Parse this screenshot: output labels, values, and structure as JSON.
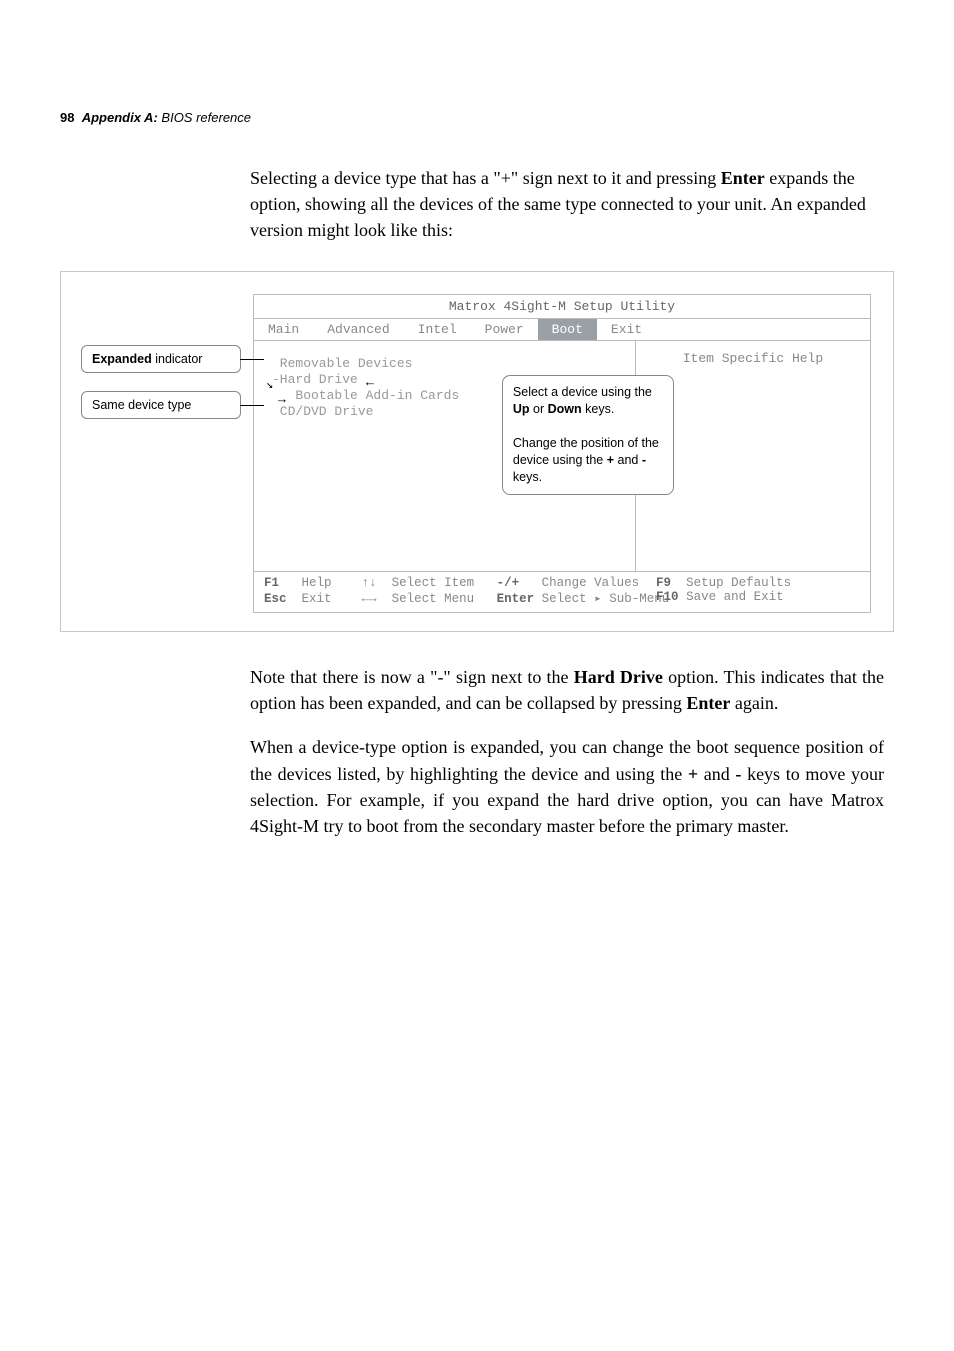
{
  "header": {
    "page_number": "98",
    "appendix": "Appendix A:",
    "subtitle": "BIOS reference"
  },
  "intro_text": "Selecting a device type that has a \"+\" sign next to it and pressing Enter expands the option, showing all the devices of the same type connected to your unit. An expanded version might look like this:",
  "intro_bold_1": "Enter",
  "callouts": {
    "c1": "Expanded indicator",
    "c2": "Same device type",
    "c1_bold": "Expanded"
  },
  "bios": {
    "title": "Matrox 4Sight-M Setup Utility",
    "tabs": [
      "Main",
      "Advanced",
      "Intel",
      "Power",
      "Boot",
      "Exit"
    ],
    "active_tab": "Boot",
    "items": [
      " Removable Devices",
      "-Hard Drive",
      "   Bootable Add-in Cards",
      " CD/DVD Drive"
    ],
    "help_header": "Item Specific Help",
    "help_bubble_l1": "Select a device using the ",
    "help_bubble_b1": "Up",
    "help_bubble_mid": " or ",
    "help_bubble_b2": "Down",
    "help_bubble_l1_end": " keys.",
    "help_bubble_p2a": "Change the position of the device using the ",
    "help_bubble_b3": "+",
    "help_bubble_and": " and ",
    "help_bubble_b4": "-",
    "help_bubble_p2b": " keys.",
    "footer": {
      "l1_k1": "F1",
      "l1_v1": "Help",
      "l1_k2": "↑↓",
      "l1_v2": "Select Item",
      "l1_k3": "-/+",
      "l1_v3": "Change Values",
      "l1_k4": "F9",
      "l1_v4": "Setup Defaults",
      "l2_k1": "Esc",
      "l2_v1": "Exit",
      "l2_k2": "←→",
      "l2_v2": "Select Menu",
      "l2_k3": "Enter",
      "l2_v3": "Select ▸ Sub-Menu",
      "l2_k4": "F10",
      "l2_v4": "Save and Exit"
    }
  },
  "outro": {
    "p1_a": "Note that there is now a \"-\" sign next to the ",
    "p1_b1": "Hard Drive",
    "p1_b": " option. This indicates that the option has been expanded, and can be collapsed by pressing ",
    "p1_b2": "Enter",
    "p1_c": " again.",
    "p2_a": "When a device-type option is expanded, you can change the boot sequence position of the devices listed, by highlighting the device and using the ",
    "p2_b1": "+",
    "p2_mid": " and ",
    "p2_b2": "-",
    "p2_b": " keys to move your selection. For example, if you expand the hard drive option, you can have Matrox 4Sight-M try to boot from the secondary master before the primary master."
  }
}
